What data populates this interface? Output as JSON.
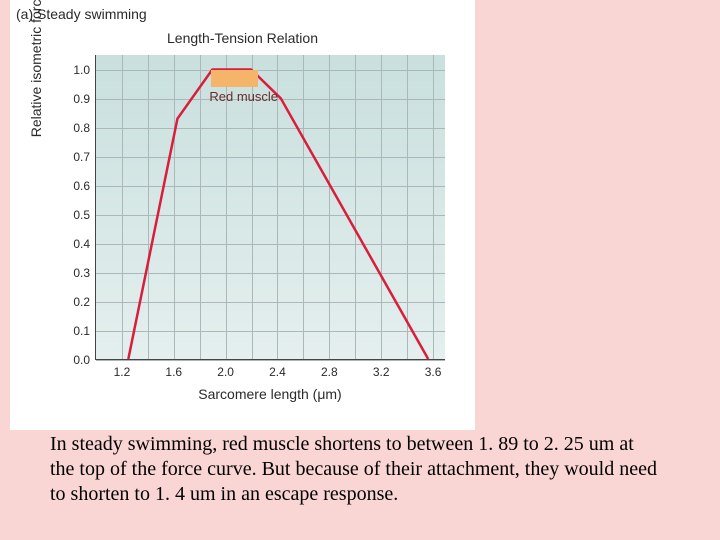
{
  "panel_label": "(a) Steady swimming",
  "chart": {
    "type": "line",
    "title": "Length-Tension Relation",
    "title_fontsize": 14,
    "xlabel": "Sarcomere length (μm)",
    "ylabel": "Relative isometric force",
    "label_fontsize": 14,
    "xlim": [
      1.0,
      3.7
    ],
    "ylim": [
      0.0,
      1.05
    ],
    "xtick_values": [
      1.2,
      1.6,
      2.0,
      2.4,
      2.8,
      3.2,
      3.6
    ],
    "xtick_labels": [
      "1.2",
      "1.6",
      "2.0",
      "2.4",
      "2.8",
      "3.2",
      "3.6"
    ],
    "ytick_values": [
      0.0,
      0.1,
      0.2,
      0.3,
      0.4,
      0.5,
      0.6,
      0.7,
      0.8,
      0.9,
      1.0
    ],
    "ytick_labels": [
      "0.0",
      "0.1",
      "0.2",
      "0.3",
      "0.4",
      "0.5",
      "0.6",
      "0.7",
      "0.8",
      "0.9",
      "1.0"
    ],
    "grid_xstep": 0.2,
    "grid_color": "#aab8b7",
    "background_gradient_top": "#c9e0de",
    "background_gradient_bottom": "#e4efee",
    "page_background": "#f9d5d3",
    "figure_background": "#ffffff",
    "tick_fontsize": 12,
    "series": {
      "name": "length-tension",
      "color": "#d81e3a",
      "line_width": 2.5,
      "points": [
        [
          1.25,
          0.0
        ],
        [
          1.63,
          0.83
        ],
        [
          1.9,
          1.0
        ],
        [
          2.2,
          1.0
        ],
        [
          2.43,
          0.9
        ],
        [
          3.57,
          0.0
        ]
      ]
    },
    "annotation": {
      "label": "Red muscle",
      "label_color": "#6a2b2b",
      "box_color": "#f4b46a",
      "box_x_range": [
        1.89,
        2.25
      ],
      "box_y_range": [
        0.94,
        1.0
      ]
    }
  },
  "caption": "In steady swimming, red muscle shortens to between 1. 89 to 2. 25 um at the top of the force curve. But because of their attachment, they would need to shorten to 1. 4 um in an escape response."
}
